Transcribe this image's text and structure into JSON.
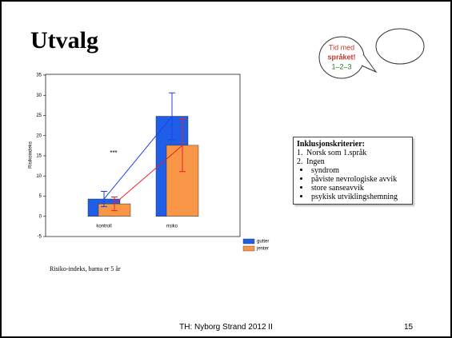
{
  "slide_title": "Utvalg",
  "logo_text": [
    "Tid med",
    "språket!",
    "1–2–3"
  ],
  "chart_data": {
    "type": "bar",
    "ylabel": "Risikoindeks",
    "annotation": "***",
    "caption": "Risiko-indeks, barna er 5 år",
    "categories": [
      "kontroll",
      "risiko"
    ],
    "series": [
      {
        "name": "gutter",
        "color": "#1f5fe8",
        "values": [
          4.3,
          24.8
        ],
        "errors": [
          1.9,
          5.8
        ]
      },
      {
        "name": "jenter",
        "color": "#f79646",
        "values": [
          3.1,
          17.6
        ],
        "errors": [
          1.7,
          6.5
        ]
      }
    ],
    "ylim": [
      -5,
      35
    ],
    "yticks": [
      -5,
      0,
      5,
      10,
      15,
      20,
      25,
      30,
      35
    ]
  },
  "criteria": {
    "heading": "Inklusjonskriterier:",
    "items": [
      {
        "num": "1.",
        "text": "Norsk som 1.språk"
      },
      {
        "num": "2.",
        "text": "Ingen"
      }
    ],
    "bullets": [
      "syndrom",
      "påviste nevrologiske avvik",
      "store sanseavvik",
      "psykisk utviklingshemning"
    ]
  },
  "footer": "TH: Nyborg Strand 2012 II",
  "page_number": "15"
}
